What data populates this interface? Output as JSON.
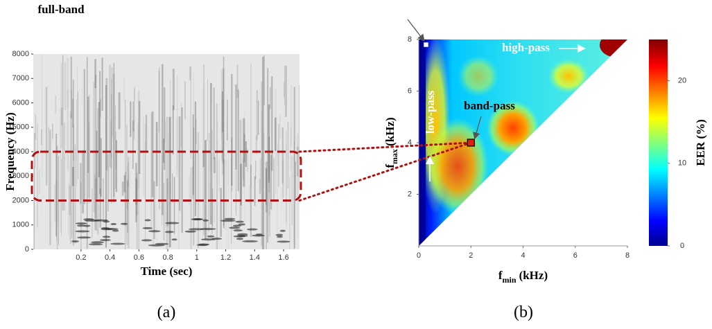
{
  "panel_a": {
    "label": "(a)",
    "xlabel": "Time (sec)",
    "ylabel": "Frequency (Hz)",
    "xlim": [
      -0.13,
      1.71
    ],
    "ylim": [
      0,
      8000
    ],
    "xticks": [
      0.2,
      0.4,
      0.6,
      0.8,
      1,
      1.2,
      1.4,
      1.6
    ],
    "yticks": [
      0,
      1000,
      2000,
      3000,
      4000,
      5000,
      6000,
      7000,
      8000
    ],
    "highlight_band": [
      2000,
      4000
    ]
  },
  "panel_b": {
    "label": "(b)",
    "xlabel": {
      "base": "f",
      "sub": "min",
      "unit": "(kHz)"
    },
    "ylabel": {
      "base": "f",
      "sub": "max",
      "unit": "(kHz)"
    },
    "xlim": [
      0,
      8
    ],
    "ylim": [
      0,
      8
    ],
    "xticks": [
      0,
      2,
      4,
      6,
      8
    ],
    "yticks": [
      2,
      4,
      6,
      8
    ],
    "colorbar": {
      "label": "EER (%)",
      "lim": [
        0,
        25
      ],
      "ticks": [
        0,
        10,
        20
      ]
    },
    "annotations": {
      "full_band": "full-band",
      "high_pass": "high-pass",
      "low_pass": "low-pass",
      "band_pass": "band-pass"
    },
    "band_pass_point": {
      "x": 2,
      "y": 4
    }
  }
}
